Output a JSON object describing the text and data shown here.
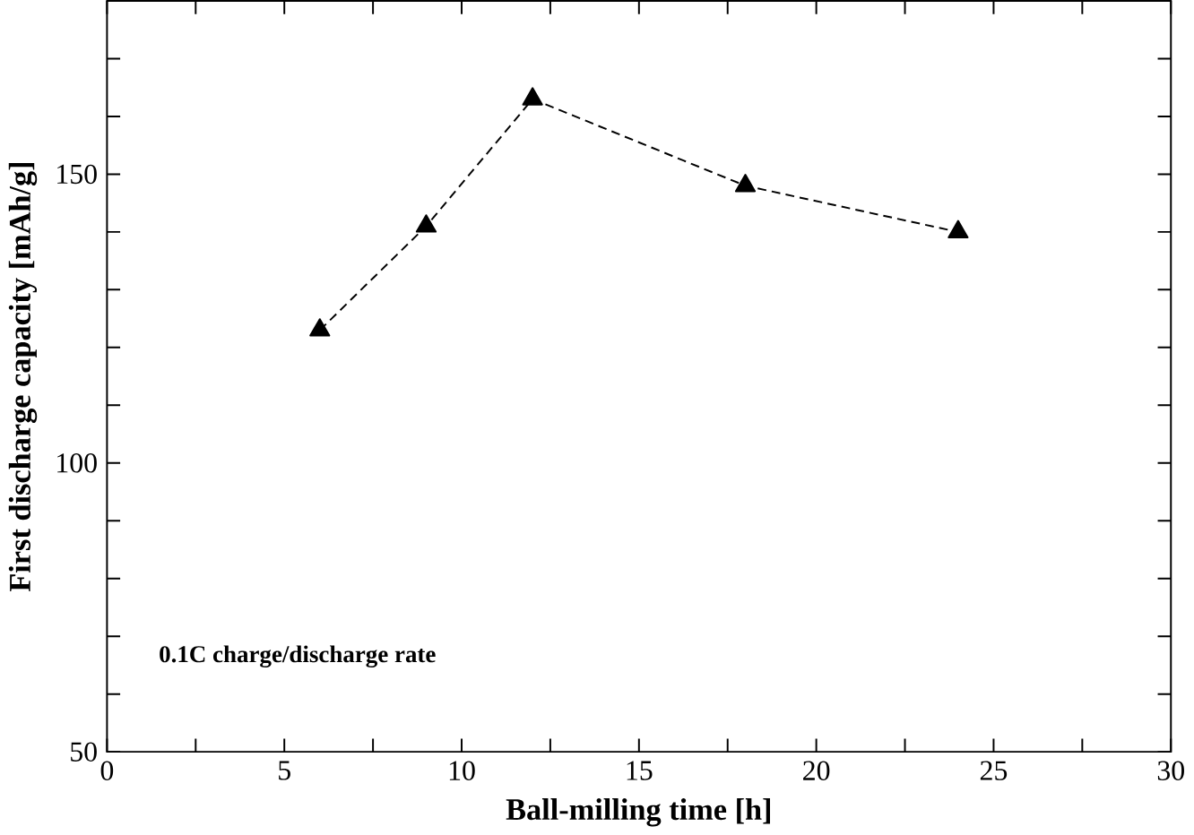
{
  "chart_data": {
    "type": "line",
    "xlabel": "Ball-milling time [h]",
    "ylabel": "First discharge capacity [mAh/g]",
    "annotations": [
      "0.1C charge/discharge rate"
    ],
    "x": [
      6,
      9,
      12,
      18,
      24
    ],
    "series": [
      {
        "color": "#000000",
        "values": [
          123,
          141,
          163,
          148,
          140
        ]
      }
    ],
    "marker": "triangle",
    "line_style": "dashed",
    "xlim": [
      0,
      30
    ],
    "ylim": [
      50,
      180
    ],
    "xticks": [
      0,
      {
        "value": 2.5,
        "label": null
      },
      5,
      {
        "value": 7.5,
        "label": null
      },
      10,
      {
        "value": 12.5,
        "label": null
      },
      15,
      {
        "value": 17.5,
        "label": null
      },
      20,
      {
        "value": 22.5,
        "label": null
      },
      25,
      {
        "value": 27.5,
        "label": null
      },
      30
    ],
    "yticks": [
      50,
      {
        "value": 60,
        "label": null
      },
      {
        "value": 70,
        "label": null
      },
      {
        "value": 80,
        "label": null
      },
      {
        "value": 90,
        "label": null
      },
      100,
      {
        "value": 110,
        "label": null
      },
      {
        "value": 120,
        "label": null
      },
      {
        "value": 130,
        "label": null
      },
      {
        "value": 140,
        "label": null
      },
      150,
      {
        "value": 160,
        "label": null
      },
      {
        "value": 170,
        "label": null
      }
    ]
  }
}
